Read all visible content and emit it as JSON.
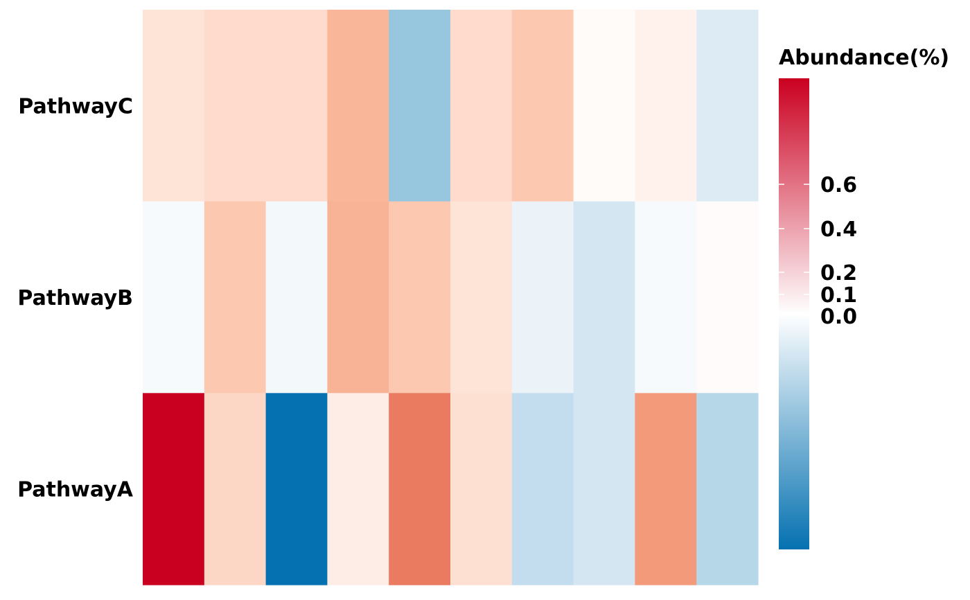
{
  "chart_data": {
    "type": "heatmap",
    "title": "",
    "xlabel": "",
    "ylabel": "",
    "rows": [
      "PathwayC",
      "PathwayB",
      "PathwayA"
    ],
    "columns": 10,
    "values": [
      [
        0.16,
        0.19,
        0.19,
        0.42,
        -0.36,
        0.19,
        0.27,
        0.01,
        0.06,
        -0.09
      ],
      [
        -0.02,
        0.27,
        -0.04,
        0.44,
        0.27,
        0.16,
        -0.06,
        -0.13,
        -0.02,
        0.005
      ],
      [
        1.0,
        0.21,
        -1.0,
        0.08,
        0.73,
        0.16,
        -0.16,
        -0.13,
        0.63,
        -0.2
      ]
    ],
    "colors": {
      "cells": [
        [
          "#fee3d7",
          "#fedbcc",
          "#fedbcc",
          "#f9b699",
          "#97c6df",
          "#fedbcc",
          "#fdc8b0",
          "#fffbf8",
          "#fff2ed",
          "#ddebf5"
        ],
        [
          "#f7fafd",
          "#fdc8b0",
          "#f3f8fb",
          "#f8b396",
          "#fdc8b0",
          "#fee3d7",
          "#ebf3f8",
          "#d4e6f1",
          "#f7fafd",
          "#fffbfa"
        ],
        [
          "#ca0020",
          "#fdd7c5",
          "#0571b0",
          "#feece6",
          "#ea7a60",
          "#fee0d2",
          "#c4ddee",
          "#d4e6f1",
          "#f39a7b",
          "#b6d7e8"
        ]
      ],
      "scale_high": "#ca0020",
      "scale_mid": "#ffffff",
      "scale_low": "#0571b0"
    },
    "legend": {
      "title": "Abundance(%)",
      "placement": "right",
      "ticks": [
        {
          "label": "0.6",
          "value": 0.6
        },
        {
          "label": "0.4",
          "value": 0.4
        },
        {
          "label": "0.2",
          "value": 0.2
        },
        {
          "label": "0.1",
          "value": 0.1
        },
        {
          "label": "0.0",
          "value": 0.0
        }
      ]
    }
  }
}
